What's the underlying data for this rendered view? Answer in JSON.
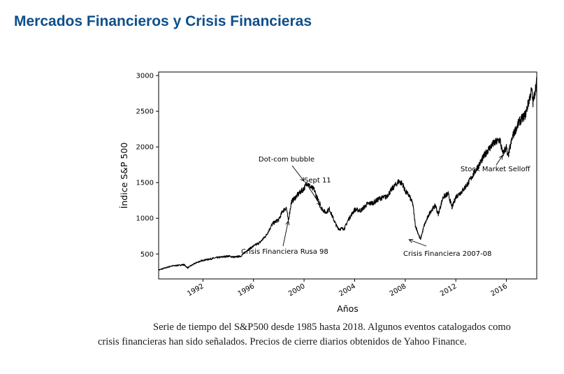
{
  "page": {
    "title": "Mercados Financieros y Crisis Financieras",
    "caption_line1": "Serie de tiempo del S&P500 desde 1985 hasta 2018. Algunos eventos catalogados como",
    "caption_line2": "crisis financieras han sido señalados. Precios de cierre diarios obtenidos de Yahoo Finance."
  },
  "chart_data": {
    "type": "line",
    "xlabel": "Años",
    "ylabel": "Índice S&P 500",
    "xlim": [
      1988.5,
      2018.4
    ],
    "ylim": [
      150,
      3050
    ],
    "x_ticks": [
      1992,
      1996,
      2000,
      2004,
      2008,
      2012,
      2016
    ],
    "y_ticks": [
      500,
      1000,
      1500,
      2000,
      2500,
      3000
    ],
    "grid": false,
    "line_color": "#000000",
    "series": [
      {
        "x": [
          1988.5,
          1989.5,
          1990.0,
          1990.5,
          1990.8,
          1991.0,
          1991.5,
          1992.0,
          1993.0,
          1994.0,
          1994.5,
          1995.0,
          1995.5,
          1996.0,
          1996.5,
          1997.0,
          1997.5,
          1997.8,
          1998.0,
          1998.3,
          1998.6,
          1998.75,
          1999.0,
          1999.5,
          2000.0,
          2000.25,
          2000.5,
          2000.8,
          2001.0,
          2001.3,
          2001.7,
          2002.0,
          2002.3,
          2002.6,
          2002.8,
          2003.2,
          2003.5,
          2004.0,
          2004.5,
          2005.0,
          2005.5,
          2006.0,
          2006.5,
          2007.0,
          2007.5,
          2007.8,
          2008.0,
          2008.3,
          2008.6,
          2008.8,
          2009.0,
          2009.2,
          2009.5,
          2010.0,
          2010.4,
          2010.6,
          2011.0,
          2011.4,
          2011.7,
          2012.0,
          2012.5,
          2013.0,
          2013.5,
          2014.0,
          2014.5,
          2015.0,
          2015.5,
          2015.7,
          2016.0,
          2016.1,
          2016.5,
          2017.0,
          2017.5,
          2018.0,
          2018.1,
          2018.4
        ],
        "y": [
          275,
          330,
          340,
          350,
          305,
          330,
          380,
          410,
          445,
          470,
          455,
          470,
          550,
          610,
          660,
          760,
          920,
          960,
          980,
          1100,
          1150,
          960,
          1230,
          1330,
          1420,
          1500,
          1440,
          1400,
          1300,
          1160,
          1080,
          1130,
          1000,
          880,
          850,
          860,
          980,
          1120,
          1110,
          1200,
          1220,
          1280,
          1300,
          1420,
          1520,
          1480,
          1380,
          1320,
          1200,
          900,
          800,
          700,
          900,
          1100,
          1180,
          1050,
          1300,
          1340,
          1150,
          1300,
          1380,
          1500,
          1650,
          1800,
          1950,
          2050,
          2100,
          1900,
          2000,
          1850,
          2150,
          2350,
          2450,
          2800,
          2620,
          2920
        ]
      }
    ],
    "annotations": [
      {
        "text": "Dot-com bubble",
        "x": 2000.0,
        "y": 1520
      },
      {
        "text": "Sept 11",
        "x": 2001.3,
        "y": 1180
      },
      {
        "text": "Crisis Financiera Rusa 98",
        "x": 1998.75,
        "y": 960
      },
      {
        "text": "Crisis Financiera 2007-08",
        "x": 2008.3,
        "y": 700
      },
      {
        "text": "Stock Market Selloff",
        "x": 2015.7,
        "y": 1880
      }
    ]
  }
}
